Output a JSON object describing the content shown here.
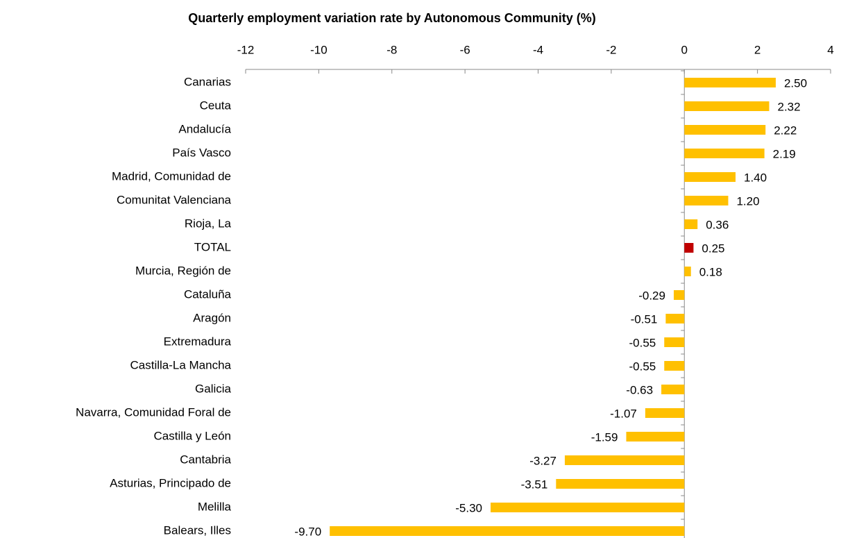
{
  "chart_data": {
    "type": "barh",
    "title": "Quarterly employment variation rate by Autonomous Community (%)",
    "categories": [
      "Canarias",
      "Ceuta",
      "Andalucía",
      "País Vasco",
      "Madrid, Comunidad de",
      "Comunitat Valenciana",
      "Rioja, La",
      "TOTAL",
      "Murcia, Región de",
      "Cataluña",
      "Aragón",
      "Extremadura",
      "Castilla-La Mancha",
      "Galicia",
      "Navarra, Comunidad Foral de",
      "Castilla y León",
      "Cantabria",
      "Asturias, Principado de",
      "Melilla",
      "Balears, Illes"
    ],
    "values": [
      2.5,
      2.32,
      2.22,
      2.19,
      1.4,
      1.2,
      0.36,
      0.25,
      0.18,
      -0.29,
      -0.51,
      -0.55,
      -0.55,
      -0.63,
      -1.07,
      -1.59,
      -3.27,
      -3.51,
      -5.3,
      -9.7
    ],
    "value_labels": [
      "2.50",
      "2.32",
      "2.22",
      "2.19",
      "1.40",
      "1.20",
      "0.36",
      "0.25",
      "0.18",
      "-0.29",
      "-0.51",
      "-0.55",
      "-0.55",
      "-0.63",
      "-1.07",
      "-1.59",
      "-3.27",
      "-3.51",
      "-5.30",
      "-9.70"
    ],
    "colors": [
      "#FFC000",
      "#FFC000",
      "#FFC000",
      "#FFC000",
      "#FFC000",
      "#FFC000",
      "#FFC000",
      "#C00000",
      "#FFC000",
      "#FFC000",
      "#FFC000",
      "#FFC000",
      "#FFC000",
      "#FFC000",
      "#FFC000",
      "#FFC000",
      "#FFC000",
      "#FFC000",
      "#FFC000",
      "#FFC000"
    ],
    "xlim": [
      -12,
      4
    ],
    "xticks": [
      -12,
      -10,
      -8,
      -6,
      -4,
      -2,
      0,
      2,
      4
    ],
    "grid": false
  }
}
